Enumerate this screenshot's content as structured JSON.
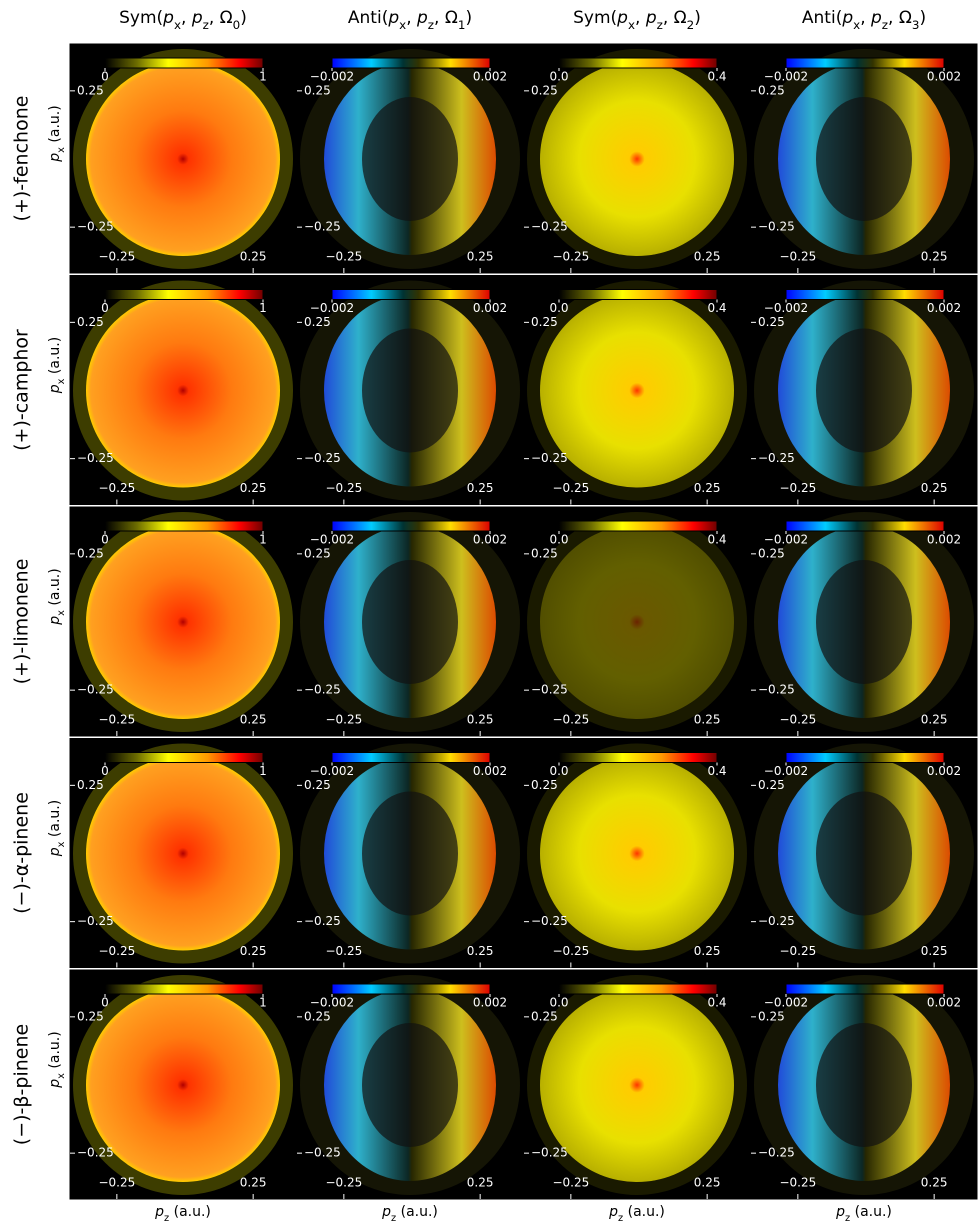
{
  "figure": {
    "columns": [
      {
        "title": [
          "Sym(",
          "p",
          "x",
          ", ",
          "p",
          "z",
          ", Ω",
          "0",
          ")"
        ],
        "kind": "sym",
        "colorbar_ticks": [
          0,
          1
        ]
      },
      {
        "title": [
          "Anti(",
          "p",
          "x",
          ", ",
          "p",
          "z",
          ", Ω",
          "1",
          ")"
        ],
        "kind": "anti",
        "colorbar_ticks": [
          {
            "value": -0.002,
            "label": "−0.002"
          },
          0.002
        ]
      },
      {
        "title": [
          "Sym(",
          "p",
          "x",
          ", ",
          "p",
          "z",
          ", Ω",
          "2",
          ")"
        ],
        "kind": "sym",
        "colorbar_ticks": [
          {
            "value": 0,
            "label": "0.0"
          },
          0.4
        ]
      },
      {
        "title": [
          "Anti(",
          "p",
          "x",
          ", ",
          "p",
          "z",
          ", Ω",
          "3",
          ")"
        ],
        "kind": "anti",
        "colorbar_ticks": [
          {
            "value": -0.002,
            "label": "−0.002"
          },
          0.002
        ]
      }
    ],
    "rows": [
      "(+)-fenchone",
      "(+)-camphor",
      "(+)-limonene",
      "(−)-α-pinene",
      "(−)-β-pinene"
    ],
    "xlabel": [
      "p",
      "z",
      " (a.u.)"
    ],
    "ylabel": [
      "p",
      "x",
      " (a.u.)"
    ],
    "xlim": [
      -0.42,
      0.42
    ],
    "ylim": [
      -0.42,
      0.42
    ],
    "xticks": [
      {
        "value": -0.25,
        "label": "−0.25"
      },
      0.25
    ],
    "yticks": [
      {
        "value": -0.25,
        "label": "−0.25"
      },
      0.25
    ]
  }
}
